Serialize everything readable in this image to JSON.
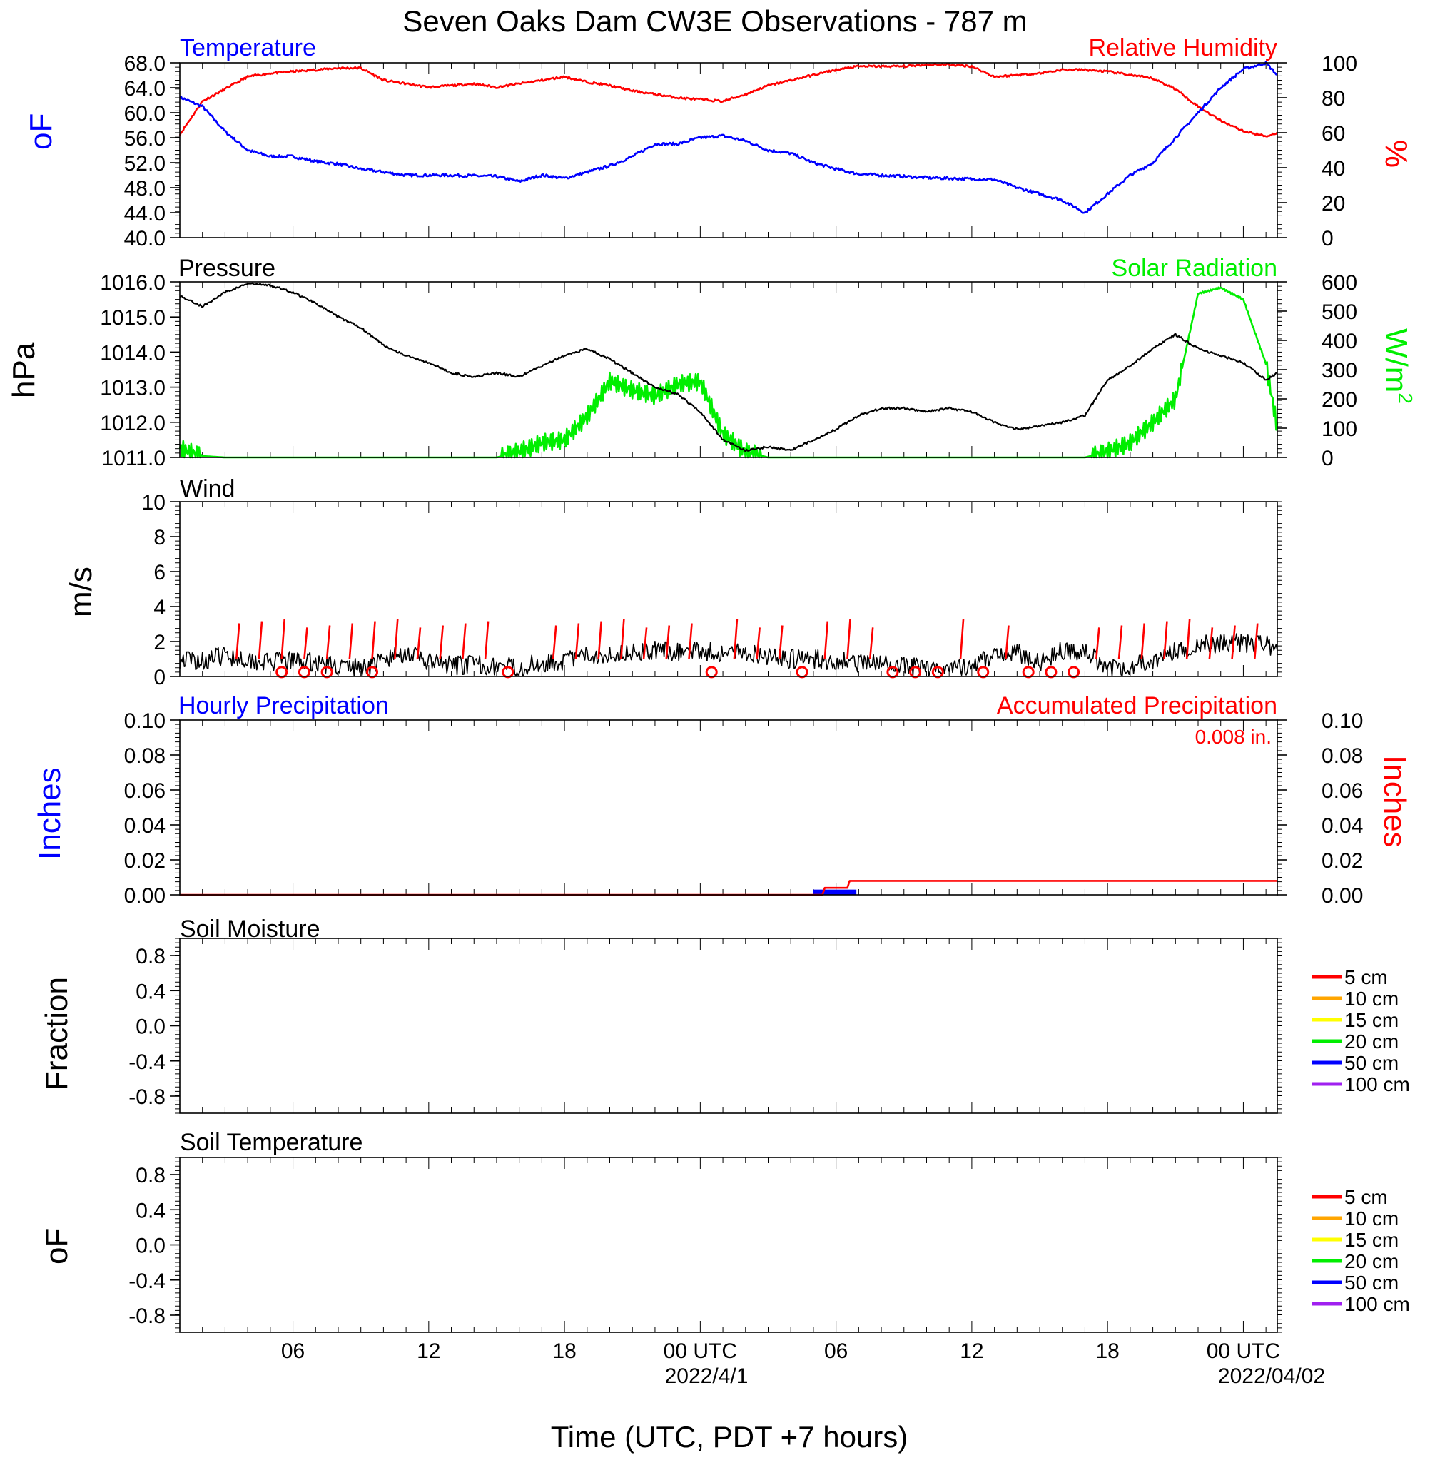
{
  "title": "Seven Oaks Dam CW3E Observations - 787 m",
  "colors": {
    "temperature": "#0000ff",
    "humidity": "#ff0000",
    "pressure": "#000000",
    "solar": "#00ee00",
    "wind": "#000000",
    "barb": "#ff0000",
    "hourly_precip": "#0000ff",
    "accum_precip": "#ff0000"
  },
  "x_axis": {
    "title": "Time (UTC, PDT +7 hours)",
    "tick_labels": [
      "06",
      "12",
      "18",
      "00 UTC",
      "06",
      "12",
      "18",
      "00 UTC"
    ],
    "date_labels": [
      "2022/4/1",
      "2022/04/02"
    ]
  },
  "panels": {
    "temp_rh": {
      "left_title": "Temperature",
      "right_title": "Relative Humidity",
      "left_axis_label": "oF",
      "right_axis_label": "%",
      "left_ticks": [
        "68.0",
        "64.0",
        "60.0",
        "56.0",
        "52.0",
        "48.0",
        "44.0",
        "40.0"
      ],
      "right_ticks": [
        "100",
        "80",
        "60",
        "40",
        "20",
        "0"
      ]
    },
    "pressure_solar": {
      "left_title": "Pressure",
      "right_title": "Solar Radiation",
      "left_axis_label": "hPa",
      "right_axis_label": "W/m",
      "right_axis_sup": "2",
      "left_ticks": [
        "1016.0",
        "1015.0",
        "1014.0",
        "1013.0",
        "1012.0",
        "1011.0"
      ],
      "right_ticks": [
        "600",
        "500",
        "400",
        "300",
        "200",
        "100",
        "0"
      ]
    },
    "wind": {
      "left_title": "Wind",
      "left_axis_label": "m/s",
      "left_ticks": [
        "10",
        "8",
        "6",
        "4",
        "2",
        "0"
      ]
    },
    "precip": {
      "left_title": "Hourly Precipitation",
      "right_title": "Accumulated Precipitation",
      "total_label": "0.008 in.",
      "left_axis_label": "Inches",
      "right_axis_label": "Inches",
      "left_ticks": [
        "0.10",
        "0.08",
        "0.06",
        "0.04",
        "0.02",
        "0.00"
      ],
      "right_ticks": [
        "0.10",
        "0.08",
        "0.06",
        "0.04",
        "0.02",
        "0.00"
      ]
    },
    "soil_moisture": {
      "left_title": "Soil Moisture",
      "left_axis_label": "Fraction",
      "left_ticks": [
        "0.8",
        "0.4",
        "0.0",
        "-0.4",
        "-0.8"
      ],
      "legend": [
        {
          "label": "5 cm",
          "color": "#ff0000"
        },
        {
          "label": "10 cm",
          "color": "#ffa500"
        },
        {
          "label": "15 cm",
          "color": "#ffff00"
        },
        {
          "label": "20 cm",
          "color": "#00ee00"
        },
        {
          "label": "50 cm",
          "color": "#0000ff"
        },
        {
          "label": "100 cm",
          "color": "#a020f0"
        }
      ]
    },
    "soil_temp": {
      "left_title": "Soil Temperature",
      "left_axis_label": "oF",
      "left_ticks": [
        "0.8",
        "0.4",
        "0.0",
        "-0.4",
        "-0.8"
      ],
      "legend": [
        {
          "label": "5 cm",
          "color": "#ff0000"
        },
        {
          "label": "10 cm",
          "color": "#ffa500"
        },
        {
          "label": "15 cm",
          "color": "#ffff00"
        },
        {
          "label": "20 cm",
          "color": "#00ee00"
        },
        {
          "label": "50 cm",
          "color": "#0000ff"
        },
        {
          "label": "100 cm",
          "color": "#a020f0"
        }
      ]
    }
  },
  "chart_data": [
    {
      "type": "line",
      "panel": "temp_rh",
      "x_unit": "hours since 2022-03-31 01 UTC",
      "x": [
        0,
        1,
        2,
        3,
        4,
        5,
        6,
        7,
        8,
        9,
        10,
        11,
        12,
        13,
        14,
        15,
        16,
        17,
        18,
        19,
        20,
        21,
        22,
        23,
        24,
        25,
        26,
        27,
        28,
        29,
        30,
        31,
        32,
        33,
        34,
        35,
        36,
        37,
        38,
        39,
        40,
        41,
        42,
        43,
        44,
        45,
        46,
        47,
        48,
        48.5
      ],
      "series": [
        {
          "name": "Temperature",
          "axis": "left",
          "unit": "°F",
          "values": [
            62.5,
            61,
            57,
            54,
            53,
            53,
            52.2,
            51.8,
            51,
            50.5,
            50,
            50,
            50,
            49.9,
            49.8,
            49,
            50,
            49.5,
            50.5,
            51.5,
            53,
            55,
            55,
            56,
            56.3,
            55.5,
            54,
            53.5,
            52,
            51,
            50.2,
            50,
            49.8,
            49.6,
            49.5,
            49.4,
            49.3,
            48,
            47,
            46,
            44,
            47,
            50,
            52,
            56,
            60,
            64,
            67,
            68,
            66
          ]
        },
        {
          "name": "Relative Humidity",
          "axis": "right",
          "unit": "%",
          "values": [
            59,
            78,
            85,
            92,
            94,
            95,
            96,
            97,
            97,
            90,
            88,
            86,
            87,
            88,
            86,
            88,
            90,
            92,
            89,
            87,
            84,
            82,
            80,
            79,
            78,
            82,
            87,
            90,
            93,
            96,
            98,
            98,
            98,
            99,
            99,
            98,
            92,
            93,
            94,
            96,
            96,
            95,
            93,
            91,
            85,
            75,
            67,
            61,
            58,
            60
          ]
        }
      ],
      "left_ylim": [
        40,
        68
      ],
      "right_ylim": [
        0,
        100
      ]
    },
    {
      "type": "line",
      "panel": "pressure_solar",
      "x_unit": "hours since 2022-03-31 01 UTC",
      "x": [
        0,
        1,
        2,
        3,
        4,
        5,
        6,
        7,
        8,
        9,
        10,
        11,
        12,
        13,
        14,
        15,
        16,
        17,
        18,
        19,
        20,
        21,
        22,
        23,
        24,
        25,
        26,
        27,
        28,
        29,
        30,
        31,
        32,
        33,
        34,
        35,
        36,
        37,
        38,
        39,
        40,
        41,
        42,
        43,
        44,
        45,
        46,
        47,
        48,
        48.5
      ],
      "series": [
        {
          "name": "Pressure",
          "axis": "left",
          "unit": "hPa",
          "values": [
            1015.6,
            1015.3,
            1015.7,
            1015.95,
            1015.9,
            1015.7,
            1015.4,
            1015.0,
            1014.7,
            1014.2,
            1013.9,
            1013.7,
            1013.4,
            1013.3,
            1013.4,
            1013.3,
            1013.6,
            1013.9,
            1014.1,
            1013.8,
            1013.4,
            1013.0,
            1012.8,
            1012.3,
            1011.5,
            1011.2,
            1011.3,
            1011.2,
            1011.5,
            1011.8,
            1012.2,
            1012.4,
            1012.4,
            1012.3,
            1012.4,
            1012.3,
            1012.0,
            1011.8,
            1011.9,
            1012.0,
            1012.2,
            1013.2,
            1013.6,
            1014.1,
            1014.5,
            1014.1,
            1013.9,
            1013.7,
            1013.2,
            1013.4
          ]
        },
        {
          "name": "Solar Radiation",
          "axis": "right",
          "unit": "W/m2",
          "values": [
            30,
            5,
            0,
            0,
            0,
            0,
            0,
            0,
            0,
            0,
            0,
            0,
            0,
            0,
            0,
            20,
            50,
            60,
            140,
            260,
            230,
            210,
            250,
            260,
            80,
            20,
            0,
            0,
            0,
            0,
            0,
            0,
            0,
            0,
            0,
            0,
            0,
            0,
            0,
            0,
            0,
            20,
            50,
            120,
            200,
            560,
            580,
            540,
            320,
            100
          ]
        }
      ],
      "left_ylim": [
        1011,
        1016
      ],
      "right_ylim": [
        0,
        600
      ]
    },
    {
      "type": "line",
      "panel": "wind",
      "x_unit": "hours since 2022-03-31 01 UTC",
      "x": [
        0,
        1,
        2,
        3,
        4,
        5,
        6,
        7,
        8,
        9,
        10,
        11,
        12,
        13,
        14,
        15,
        16,
        17,
        18,
        19,
        20,
        21,
        22,
        23,
        24,
        25,
        26,
        27,
        28,
        29,
        30,
        31,
        32,
        33,
        34,
        35,
        36,
        37,
        38,
        39,
        40,
        41,
        42,
        43,
        44,
        45,
        46,
        47,
        48,
        48.5
      ],
      "series": [
        {
          "name": "Wind speed",
          "unit": "m/s",
          "values": [
            1.0,
            0.9,
            1.2,
            1.0,
            0.8,
            0.9,
            0.8,
            0.6,
            0.5,
            0.9,
            1.4,
            0.8,
            0.6,
            0.7,
            0.6,
            0.5,
            0.8,
            0.9,
            1.2,
            1.3,
            1.4,
            1.5,
            1.4,
            1.5,
            1.3,
            1.4,
            1.2,
            1.0,
            1.0,
            0.9,
            0.8,
            0.7,
            0.6,
            0.5,
            0.6,
            0.5,
            1.3,
            1.4,
            0.8,
            1.5,
            1.4,
            0.5,
            0.6,
            0.9,
            1.4,
            1.8,
            1.9,
            1.9,
            1.8,
            1.6
          ]
        }
      ],
      "calm_hours": [
        4,
        5,
        6,
        8,
        14,
        23,
        27,
        31,
        32,
        33,
        35,
        37,
        38,
        39
      ],
      "barb_hours": [
        2,
        3,
        4,
        5,
        6,
        7,
        8,
        9,
        10,
        11,
        12,
        13,
        16,
        17,
        18,
        19,
        20,
        21,
        22,
        24,
        25,
        26,
        28,
        29,
        30,
        34,
        36,
        40,
        41,
        42,
        43,
        44,
        45,
        46,
        47
      ],
      "ylim": [
        0,
        10
      ]
    },
    {
      "type": "bar",
      "panel": "precip",
      "bars": [
        {
          "start_hour": 28,
          "end_hour": 29.9,
          "value": 0.003,
          "name": "Hourly Precipitation"
        }
      ],
      "accumulated": {
        "name": "Accumulated Precipitation",
        "x": [
          0,
          28.4,
          28.5,
          29.5,
          29.6,
          48.5
        ],
        "values": [
          0,
          0,
          0.004,
          0.004,
          0.008,
          0.008
        ]
      },
      "ylim": [
        0,
        0.1
      ]
    }
  ]
}
